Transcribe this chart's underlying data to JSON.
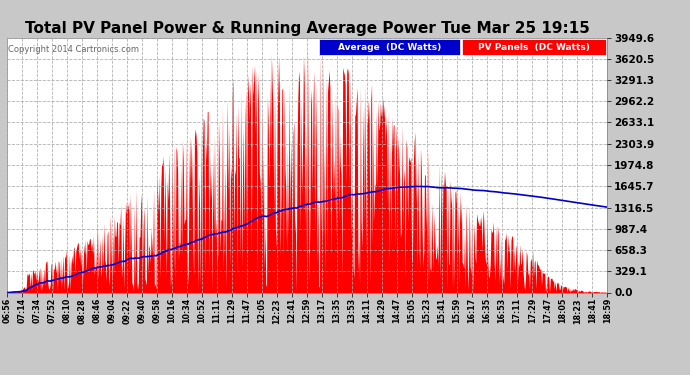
{
  "title": "Total PV Panel Power & Running Average Power Tue Mar 25 19:15",
  "copyright": "Copyright 2014 Cartronics.com",
  "legend_avg": "Average  (DC Watts)",
  "legend_pv": "PV Panels  (DC Watts)",
  "y_ticks": [
    0.0,
    329.1,
    658.3,
    987.4,
    1316.5,
    1645.7,
    1974.8,
    2303.9,
    2633.1,
    2962.2,
    3291.3,
    3620.5,
    3949.6
  ],
  "ymax": 3949.6,
  "ymin": 0.0,
  "figure_bg_color": "#c8c8c8",
  "plot_bg_color": "#ffffff",
  "bar_color": "#ff0000",
  "avg_line_color": "#0000cc",
  "title_fontsize": 11,
  "avg_peak_value": 1645.0,
  "x_labels": [
    "06:56",
    "07:14",
    "07:34",
    "07:52",
    "08:10",
    "08:28",
    "08:46",
    "09:04",
    "09:22",
    "09:40",
    "09:58",
    "10:16",
    "10:34",
    "10:52",
    "11:11",
    "11:29",
    "11:47",
    "12:05",
    "12:23",
    "12:41",
    "12:59",
    "13:17",
    "13:35",
    "13:53",
    "14:11",
    "14:29",
    "14:47",
    "15:05",
    "15:23",
    "15:41",
    "15:59",
    "16:17",
    "16:35",
    "16:53",
    "17:11",
    "17:29",
    "17:47",
    "18:05",
    "18:23",
    "18:41",
    "18:59"
  ]
}
